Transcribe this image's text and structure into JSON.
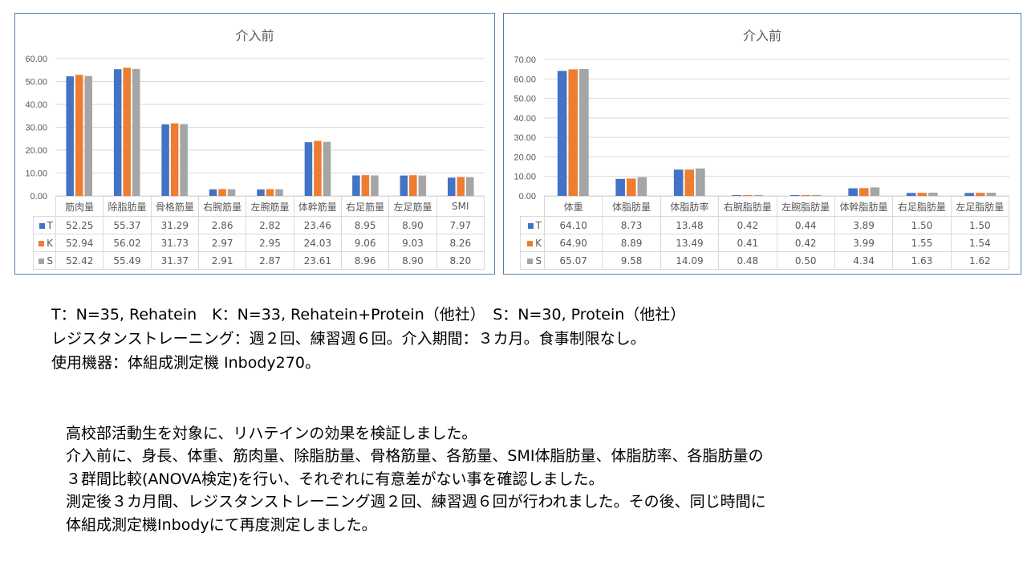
{
  "colors": {
    "T": "#4472c4",
    "K": "#ed7d31",
    "S": "#a5a5a5"
  },
  "chart_data": [
    {
      "type": "bar",
      "title": "介入前",
      "categories": [
        "筋肉量",
        "除脂肪量",
        "骨格筋量",
        "右腕筋量",
        "左腕筋量",
        "体幹筋量",
        "右足筋量",
        "左足筋量",
        "SMI"
      ],
      "ylim": [
        0,
        60
      ],
      "yticks": [
        "0.00",
        "10.00",
        "20.00",
        "30.00",
        "40.00",
        "50.00",
        "60.00"
      ],
      "grid": true,
      "series": [
        {
          "name": "T",
          "values": [
            52.25,
            55.37,
            31.29,
            2.86,
            2.82,
            23.46,
            8.95,
            8.9,
            7.97
          ],
          "labels": [
            "52.25",
            "55.37",
            "31.29",
            "2.86",
            "2.82",
            "23.46",
            "8.95",
            "8.90",
            "7.97"
          ]
        },
        {
          "name": "K",
          "values": [
            52.94,
            56.02,
            31.73,
            2.97,
            2.95,
            24.03,
            9.06,
            9.03,
            8.26
          ],
          "labels": [
            "52.94",
            "56.02",
            "31.73",
            "2.97",
            "2.95",
            "24.03",
            "9.06",
            "9.03",
            "8.26"
          ]
        },
        {
          "name": "S",
          "values": [
            52.42,
            55.49,
            31.37,
            2.91,
            2.87,
            23.61,
            8.96,
            8.9,
            8.2
          ],
          "labels": [
            "52.42",
            "55.49",
            "31.37",
            "2.91",
            "2.87",
            "23.61",
            "8.96",
            "8.90",
            "8.20"
          ]
        }
      ]
    },
    {
      "type": "bar",
      "title": "介入前",
      "categories": [
        "体重",
        "体脂肪量",
        "体脂肪率",
        "右腕脂肪量",
        "左腕脂肪量",
        "体幹脂肪量",
        "右足脂肪量",
        "左足脂肪量"
      ],
      "ylim": [
        0,
        70
      ],
      "yticks": [
        "0.00",
        "10.00",
        "20.00",
        "30.00",
        "40.00",
        "50.00",
        "60.00",
        "70.00"
      ],
      "grid": true,
      "series": [
        {
          "name": "T",
          "values": [
            64.1,
            8.73,
            13.48,
            0.42,
            0.44,
            3.89,
            1.5,
            1.5
          ],
          "labels": [
            "64.10",
            "8.73",
            "13.48",
            "0.42",
            "0.44",
            "3.89",
            "1.50",
            "1.50"
          ]
        },
        {
          "name": "K",
          "values": [
            64.9,
            8.89,
            13.49,
            0.41,
            0.42,
            3.99,
            1.55,
            1.54
          ],
          "labels": [
            "64.90",
            "8.89",
            "13.49",
            "0.41",
            "0.42",
            "3.99",
            "1.55",
            "1.54"
          ]
        },
        {
          "name": "S",
          "values": [
            65.07,
            9.58,
            14.09,
            0.48,
            0.5,
            4.34,
            1.63,
            1.62
          ],
          "labels": [
            "65.07",
            "9.58",
            "14.09",
            "0.48",
            "0.50",
            "4.34",
            "1.63",
            "1.62"
          ]
        }
      ]
    }
  ],
  "notes": [
    "T：N=35, Rehatein　K：N=33, Rehatein+Protein（他社）　S：N=30, Protein（他社）",
    "レジスタンストレーニング：週２回、練習週６回。介入期間：３カ月。食事制限なし。",
    "使用機器：体組成測定機 Inbody270。"
  ],
  "description": [
    "高校部活動生を対象に、リハテインの効果を検証しました。",
    "介入前に、身長、体重、筋肉量、除脂肪量、骨格筋量、各筋量、SMI体脂肪量、体脂肪率、各脂肪量の",
    "３群間比較(ANOVA検定)を行い、それぞれに有意差がない事を確認しました。",
    "測定後３カ月間、レジスタンストレーニング週２回、練習週６回が行われました。その後、同じ時間に",
    "体組成測定機Inbodyにて再度測定しました。"
  ]
}
